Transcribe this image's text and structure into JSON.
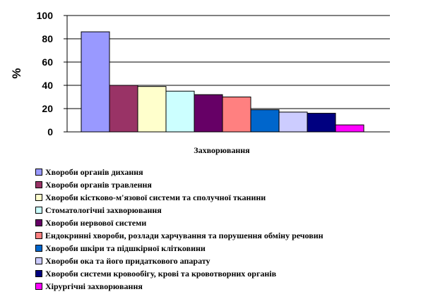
{
  "chart_data": {
    "type": "bar",
    "ylabel": "%",
    "xlabel": "Захворювання",
    "ylim": [
      0,
      100
    ],
    "yticks": [
      "0",
      "20",
      "40",
      "60",
      "80",
      "100"
    ],
    "grid": true,
    "legend_position": "bottom",
    "series": [
      {
        "name": "Хвороби органів дихання",
        "value": 86,
        "color": "#9999ff"
      },
      {
        "name": "Хвороби органів травлення",
        "value": 40,
        "color": "#993366"
      },
      {
        "name": "Хвороби кістково-м'язової системи та сполучної тканини",
        "value": 39,
        "color": "#ffffcc"
      },
      {
        "name": "Стоматологічні захворювання",
        "value": 35,
        "color": "#ccffff"
      },
      {
        "name": "Хвороби нервової системи",
        "value": 32,
        "color": "#660066"
      },
      {
        "name": "Ендокринні хвороби, розлади харчування та порушення обміну речовин",
        "value": 30,
        "color": "#ff8080"
      },
      {
        "name": "Хвороби шкіри та підшкірної клітковини",
        "value": 19,
        "color": "#0066cc"
      },
      {
        "name": "Хвороби ока та його придаткового апарату",
        "value": 17,
        "color": "#ccccff"
      },
      {
        "name": "Хвороби системи кровообігу, крові та кровотворних органів",
        "value": 16,
        "color": "#000080"
      },
      {
        "name": "Хірургічні захворювання",
        "value": 6,
        "color": "#ff00ff"
      }
    ]
  }
}
